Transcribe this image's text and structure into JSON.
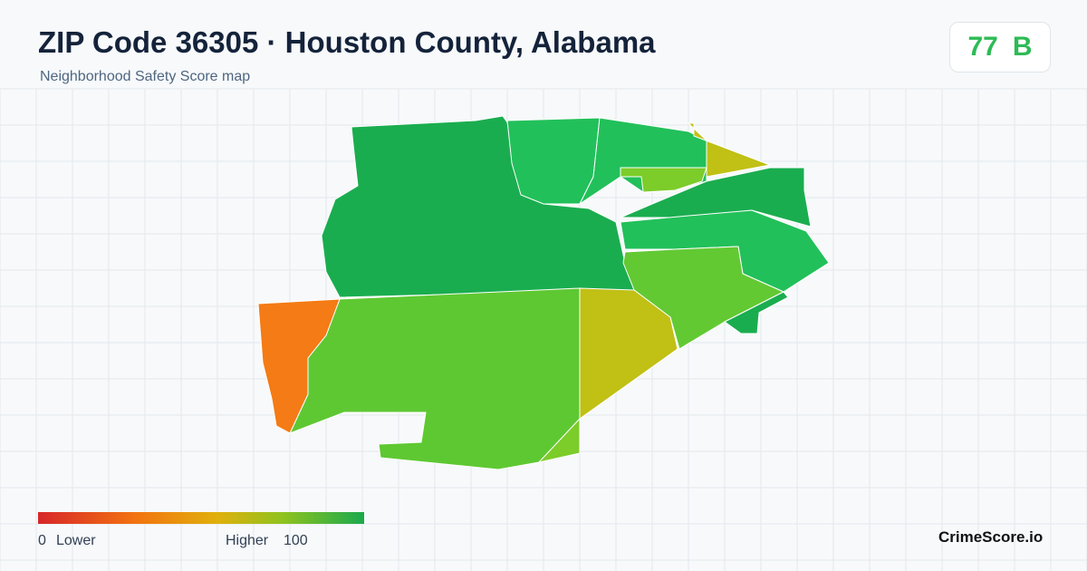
{
  "header": {
    "title": "ZIP Code 36305 · Houston County, Alabama",
    "subtitle": "Neighborhood Safety Score map"
  },
  "badge": {
    "score": 77,
    "grade": "B"
  },
  "legend": {
    "min": 0,
    "min_label": "Lower",
    "max_label": "Higher",
    "max": 100
  },
  "footer": {
    "brand": "CrimeScore.io"
  }
}
